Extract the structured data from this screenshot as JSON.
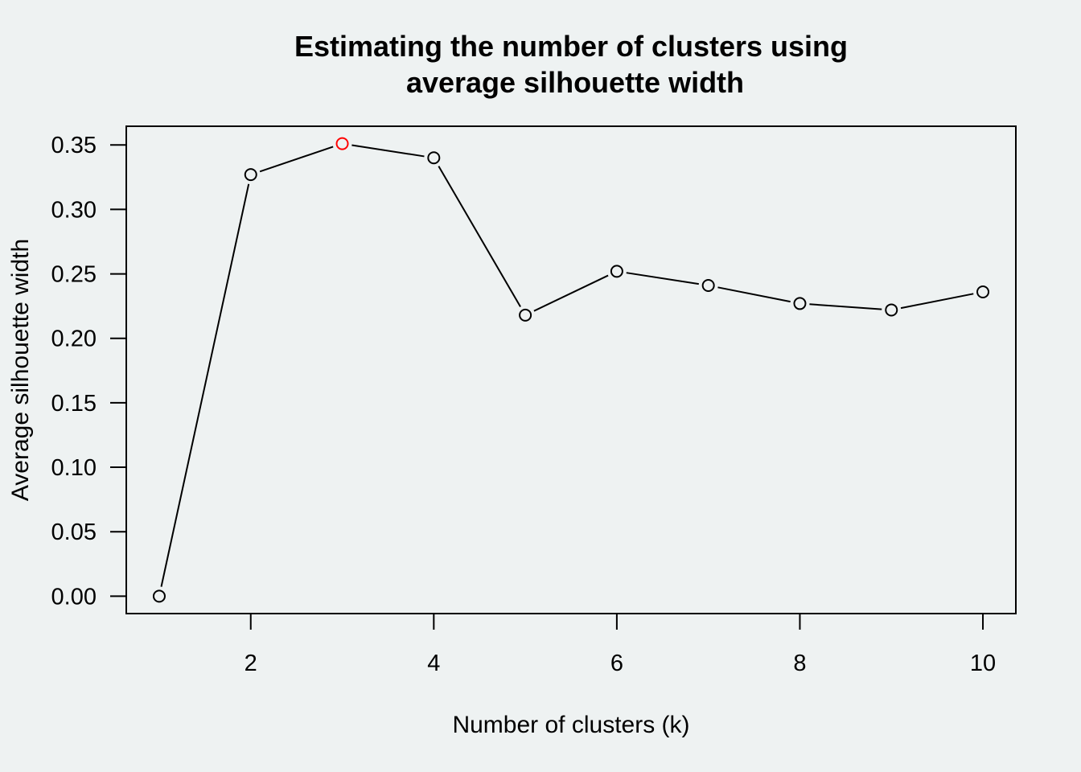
{
  "chart_data": {
    "type": "line",
    "title_lines": [
      "Estimating the number of clusters using",
      "average silhouette width"
    ],
    "xlabel": "Number of clusters (k)",
    "ylabel": "Average silhouette width",
    "x": [
      1,
      2,
      3,
      4,
      5,
      6,
      7,
      8,
      9,
      10
    ],
    "values": [
      0.0,
      0.327,
      0.351,
      0.34,
      0.218,
      0.252,
      0.241,
      0.227,
      0.222,
      0.236
    ],
    "highlight_index": 2,
    "highlight_color": "#FF0000",
    "point_color": "#000000",
    "line_color": "#000000",
    "x_ticks": [
      2,
      4,
      6,
      8,
      10
    ],
    "x_tick_labels": [
      "2",
      "4",
      "6",
      "8",
      "10"
    ],
    "y_ticks": [
      0.0,
      0.05,
      0.1,
      0.15,
      0.2,
      0.25,
      0.3,
      0.35
    ],
    "y_tick_labels": [
      "0.00",
      "0.05",
      "0.10",
      "0.15",
      "0.20",
      "0.25",
      "0.30",
      "0.35"
    ],
    "xlim": [
      0.64,
      10.36
    ],
    "ylim": [
      -0.0135,
      0.3645
    ],
    "grid": false,
    "legend": "none"
  }
}
